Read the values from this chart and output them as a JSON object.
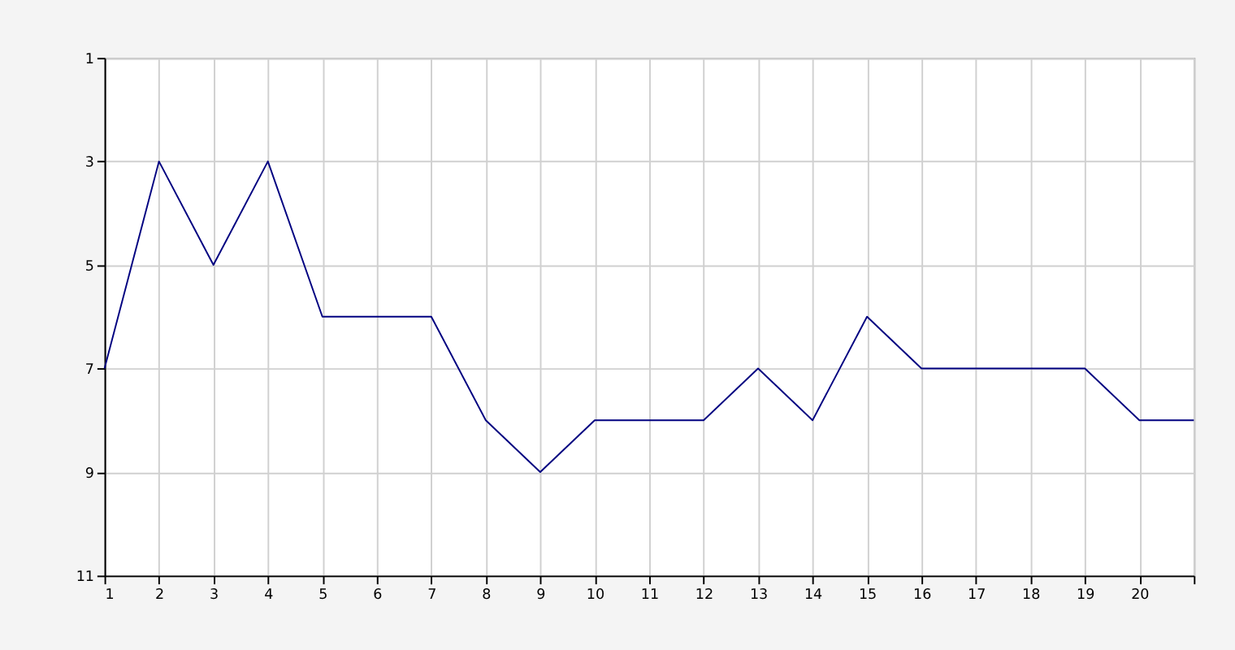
{
  "chart_data": {
    "type": "line",
    "x": [
      1,
      2,
      3,
      4,
      5,
      6,
      7,
      8,
      9,
      10,
      11,
      12,
      13,
      14,
      15,
      16,
      17,
      18,
      19,
      20,
      21
    ],
    "series": [
      {
        "color": "#000080",
        "values": [
          7,
          3,
          5,
          3,
          6,
          6,
          6,
          8,
          9,
          8,
          8,
          8,
          7,
          8,
          6,
          7,
          7,
          7,
          7,
          8,
          8
        ]
      }
    ],
    "xlim": [
      1,
      21
    ],
    "xticks": [
      1,
      2,
      3,
      4,
      5,
      6,
      7,
      8,
      9,
      10,
      11,
      12,
      13,
      14,
      15,
      16,
      17,
      18,
      19,
      20,
      {
        "value": 21,
        "label": null
      }
    ],
    "ylim": [
      11,
      1
    ],
    "yticks": [
      1,
      3,
      5,
      7,
      9,
      11
    ],
    "grid": true,
    "marker": "none",
    "line_style": "solid"
  }
}
